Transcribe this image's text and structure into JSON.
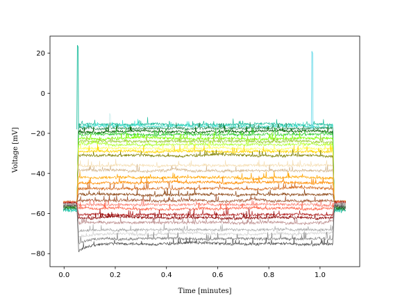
{
  "chart_data": {
    "type": "line",
    "title": "",
    "xlabel": "Time [minutes]",
    "ylabel": "Voltage [mV]",
    "xlim": [
      -0.055,
      1.155
    ],
    "ylim": [
      -86.5,
      28.5
    ],
    "xticks": [
      0.0,
      0.2,
      0.4,
      0.6,
      0.8,
      1.0
    ],
    "xtick_labels": [
      "0.0",
      "0.2",
      "0.4",
      "0.6",
      "0.8",
      "1.0"
    ],
    "yticks": [
      -80,
      -60,
      -40,
      -20,
      0,
      20
    ],
    "ytick_labels": [
      "−80",
      "−60",
      "−40",
      "−20",
      "0",
      "20"
    ],
    "grid": false,
    "legend": "none",
    "step_on": 0.05,
    "step_off": 1.05,
    "series": [
      {
        "color": "#1abc9c",
        "baseline": -58.5,
        "plateau": -15.5
      },
      {
        "color": "#40e0d0",
        "baseline": -58.0,
        "plateau": -16.5
      },
      {
        "color": "#2e8b57",
        "baseline": -57.5,
        "plateau": -17.5
      },
      {
        "color": "#006400",
        "baseline": -57.0,
        "plateau": -19.0
      },
      {
        "color": "#32cd32",
        "baseline": -56.5,
        "plateau": -20.5
      },
      {
        "color": "#7cfc00",
        "baseline": -56.0,
        "plateau": -22.5
      },
      {
        "color": "#9acd32",
        "baseline": -55.8,
        "plateau": -24.0
      },
      {
        "color": "#adff2f",
        "baseline": -55.5,
        "plateau": -25.5
      },
      {
        "color": "#ffff66",
        "baseline": -55.3,
        "plateau": -27.5
      },
      {
        "color": "#ffd700",
        "baseline": -55.0,
        "plateau": -29.0
      },
      {
        "color": "#808000",
        "baseline": -55.0,
        "plateau": -31.0
      },
      {
        "color": "#f5deb3",
        "baseline": -54.8,
        "plateau": -36.0
      },
      {
        "color": "#d2b48c",
        "baseline": -54.7,
        "plateau": -38.5
      },
      {
        "color": "#ffa500",
        "baseline": -54.5,
        "plateau": -42.0
      },
      {
        "color": "#ff8c00",
        "baseline": -54.5,
        "plateau": -44.5
      },
      {
        "color": "#d2691e",
        "baseline": -54.5,
        "plateau": -47.5
      },
      {
        "color": "#8b4513",
        "baseline": -54.5,
        "plateau": -50.5
      },
      {
        "color": "#a0522d",
        "baseline": -54.5,
        "plateau": -53.5
      },
      {
        "color": "#fa8072",
        "baseline": -54.5,
        "plateau": -55.5
      },
      {
        "color": "#ff6347",
        "baseline": -54.8,
        "plateau": -57.5
      },
      {
        "color": "#b22222",
        "baseline": -55.0,
        "plateau": -60.5
      },
      {
        "color": "#8b0000",
        "baseline": -55.0,
        "plateau": -62.0
      },
      {
        "color": "#bc8f8f",
        "baseline": -55.2,
        "plateau": -64.5
      },
      {
        "color": "#a9a9a9",
        "baseline": -55.5,
        "plateau": -68.0
      },
      {
        "color": "#d3d3d3",
        "baseline": -55.7,
        "plateau": -70.0
      },
      {
        "color": "#808080",
        "baseline": -56.0,
        "plateau": -72.5
      },
      {
        "color": "#505050",
        "baseline": -56.5,
        "plateau": -75.0
      }
    ],
    "spikes": [
      {
        "x": 0.052,
        "y": 24,
        "color": "#1abc9c"
      },
      {
        "x": 0.968,
        "y": 21,
        "color": "#66d9e8"
      },
      {
        "x": 0.178,
        "y": -10,
        "color": "#cfeeee"
      }
    ]
  }
}
